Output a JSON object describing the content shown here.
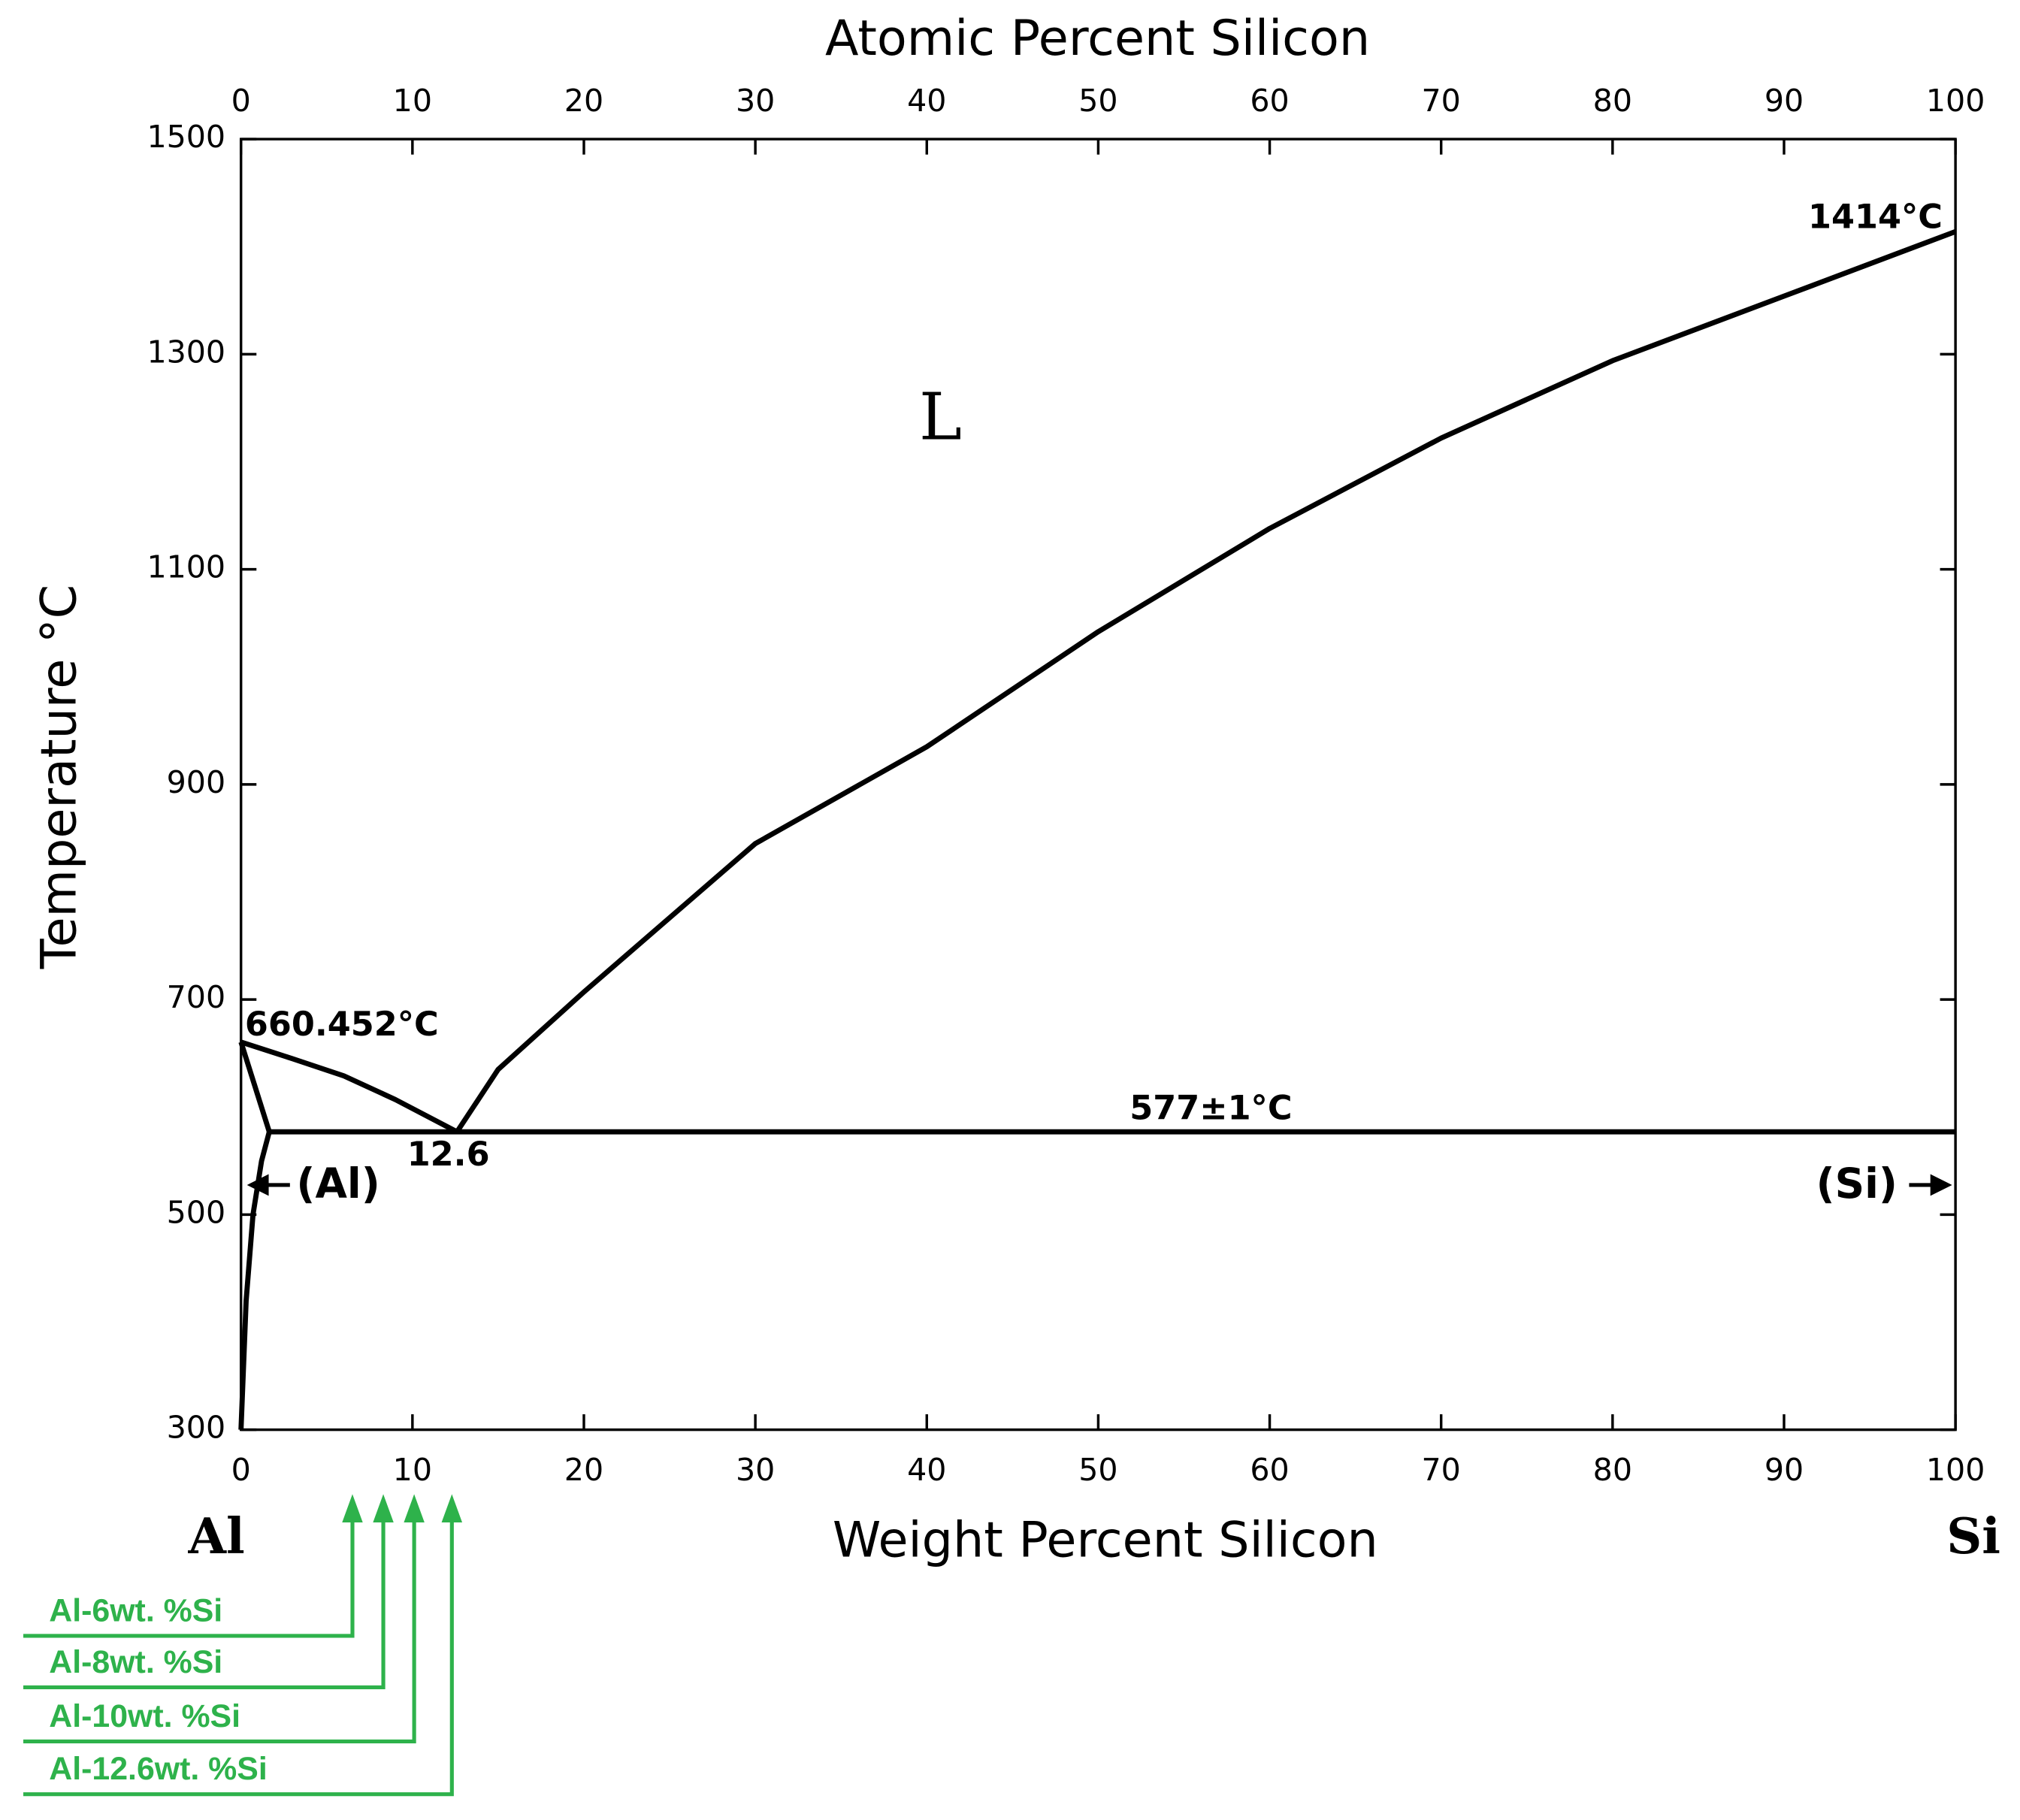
{
  "chart_data": {
    "type": "line",
    "title": "Atomic Percent Silicon",
    "xlabel": "Weight Percent Silicon",
    "ylabel": "Temperature °C",
    "xlim": [
      0,
      100
    ],
    "xticks": [
      0,
      10,
      20,
      30,
      40,
      50,
      60,
      70,
      80,
      90,
      100
    ],
    "x2lim": [
      0,
      100
    ],
    "x2ticks": [
      0,
      10,
      20,
      30,
      40,
      50,
      60,
      70,
      80,
      90,
      100
    ],
    "ylim": [
      300,
      1500
    ],
    "yticks": [
      300,
      500,
      700,
      900,
      1100,
      1300,
      1500
    ],
    "series": [
      {
        "color": "#000000",
        "x": [
          0,
          3,
          6,
          9,
          12.6
        ],
        "values": [
          660.452,
          645,
          629,
          607,
          577
        ]
      },
      {
        "color": "#000000",
        "x": [
          12.6,
          15,
          20,
          30,
          40,
          50,
          60,
          70,
          80,
          90,
          100
        ],
        "values": [
          577,
          635,
          707,
          845,
          935,
          1042,
          1138,
          1222,
          1294,
          1354,
          1414
        ]
      },
      {
        "color": "#000000",
        "x": [
          0,
          1.65
        ],
        "values": [
          660.452,
          577
        ]
      },
      {
        "color": "#000000",
        "x": [
          0,
          0.3,
          0.7,
          1.2,
          1.65
        ],
        "values": [
          300,
          420,
          500,
          550,
          577
        ]
      },
      {
        "color": "#000000",
        "x": [
          1.65,
          100
        ],
        "values": [
          577,
          577
        ]
      }
    ],
    "annotations": [
      "L",
      "1414°C",
      "660.452°C",
      "577±1°C",
      "12.6",
      "(Al)",
      "(Si)",
      "Al",
      "Si"
    ],
    "markers_color": "#2eb24b",
    "markers": [
      {
        "label": "Al-6wt. %Si",
        "x": 6.5
      },
      {
        "label": "Al-8wt. %Si",
        "x": 8.3
      },
      {
        "label": "Al-10wt. %Si",
        "x": 10.1
      },
      {
        "label": "Al-12.6wt. %Si",
        "x": 12.3
      }
    ]
  }
}
